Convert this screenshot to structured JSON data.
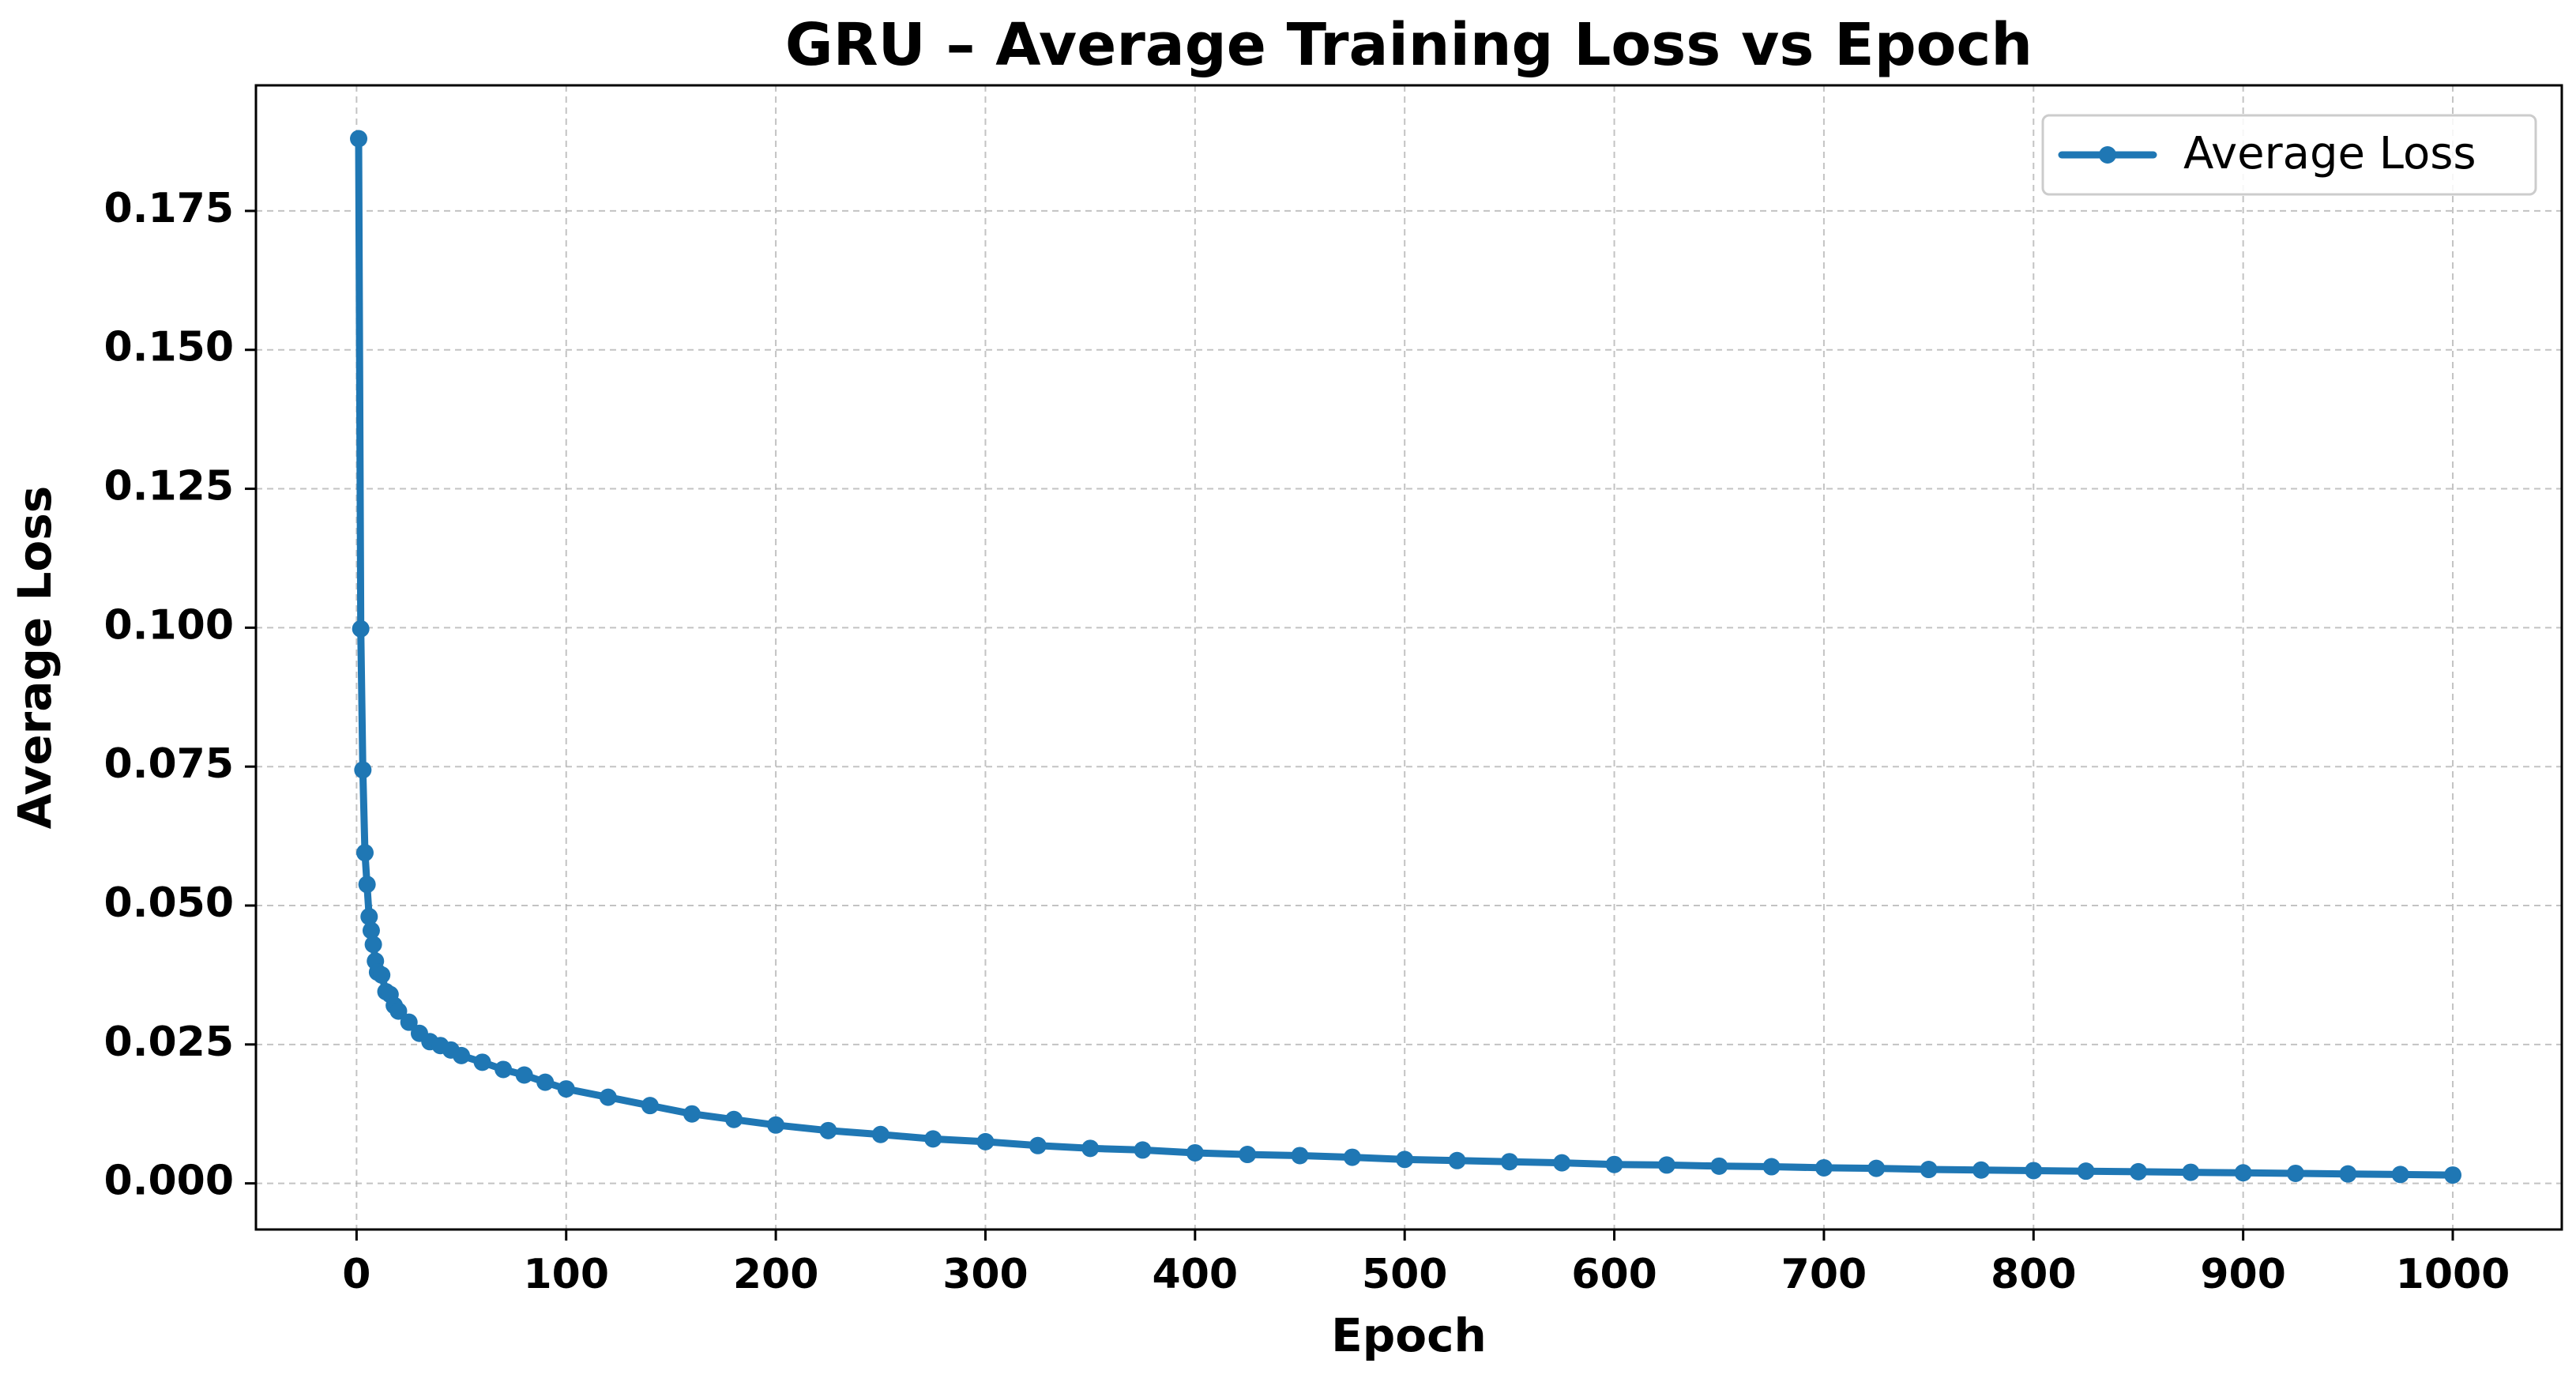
{
  "chart_data": {
    "type": "line",
    "title": "GRU – Average Training Loss vs Epoch",
    "xlabel": "Epoch",
    "ylabel": "Average Loss",
    "xlim": [
      -48,
      1052
    ],
    "ylim": [
      -0.0083,
      0.1976
    ],
    "x_ticks": [
      0,
      100,
      200,
      300,
      400,
      500,
      600,
      700,
      800,
      900,
      1000
    ],
    "x_tick_labels": [
      "0",
      "100",
      "200",
      "300",
      "400",
      "500",
      "600",
      "700",
      "800",
      "900",
      "1000"
    ],
    "y_ticks": [
      0,
      0.025,
      0.05,
      0.075,
      0.1,
      0.125,
      0.15,
      0.175
    ],
    "y_tick_labels": [
      "0.000",
      "0.025",
      "0.050",
      "0.075",
      "0.100",
      "0.125",
      "0.150",
      "0.175"
    ],
    "grid": true,
    "legend_position": "top-right",
    "series": [
      {
        "name": "Average Loss",
        "color": "#1f77b4",
        "marker": "circle",
        "x": [
          1,
          2,
          3,
          4,
          5,
          6,
          7,
          8,
          9,
          10,
          12,
          14,
          16,
          18,
          20,
          25,
          30,
          35,
          40,
          45,
          50,
          60,
          70,
          80,
          90,
          100,
          120,
          140,
          160,
          180,
          200,
          225,
          250,
          275,
          300,
          325,
          350,
          375,
          400,
          425,
          450,
          475,
          500,
          525,
          550,
          575,
          600,
          625,
          650,
          675,
          700,
          725,
          750,
          775,
          800,
          825,
          850,
          875,
          900,
          925,
          950,
          975,
          1000
        ],
        "y": [
          0.188,
          0.0998,
          0.0744,
          0.0595,
          0.0538,
          0.048,
          0.0455,
          0.043,
          0.04,
          0.038,
          0.0375,
          0.0345,
          0.034,
          0.032,
          0.031,
          0.029,
          0.027,
          0.0255,
          0.0248,
          0.024,
          0.023,
          0.0218,
          0.0205,
          0.0195,
          0.0182,
          0.017,
          0.0155,
          0.014,
          0.0125,
          0.0115,
          0.0105,
          0.0095,
          0.0088,
          0.008,
          0.0075,
          0.0068,
          0.0063,
          0.006,
          0.0055,
          0.0052,
          0.005,
          0.0047,
          0.0043,
          0.0041,
          0.0039,
          0.0037,
          0.0034,
          0.0033,
          0.0031,
          0.003,
          0.0028,
          0.0027,
          0.0025,
          0.0024,
          0.0023,
          0.0022,
          0.0021,
          0.002,
          0.0019,
          0.0018,
          0.0017,
          0.0016,
          0.0015
        ]
      }
    ]
  }
}
